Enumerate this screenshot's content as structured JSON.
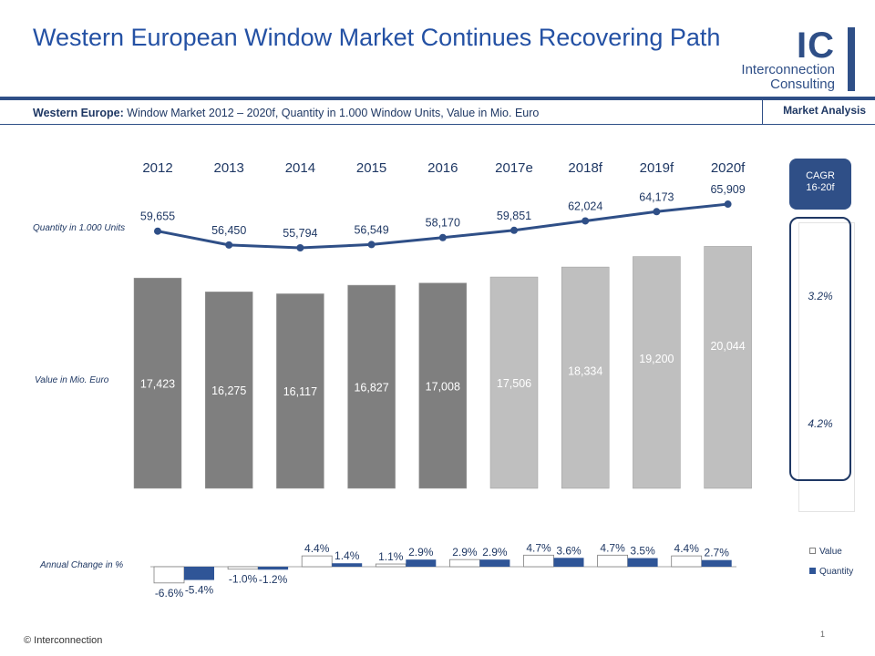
{
  "header": {
    "title": "Western European Window Market Continues Recovering Path",
    "subtitle_bold": "Western Europe:",
    "subtitle_rest": " Window Market 2012 – 2020f, Quantity in 1.000 Window Units, Value in Mio. Euro",
    "section_tag": "Market Analysis"
  },
  "logo": {
    "mark": "IC",
    "line1": "Interconnection",
    "line2": "Consulting"
  },
  "labels": {
    "quantity": "Quantity in 1.000  Units",
    "value": "Value in Mio. Euro",
    "annual_change": "Annual Change  in %"
  },
  "cagr": {
    "header": "CAGR\n16-20f",
    "quantity": "3.2%",
    "value": "4.2%"
  },
  "legend": {
    "value": "Value",
    "quantity": "Quantity"
  },
  "footer": {
    "copyright": "© Interconnection",
    "page": "1"
  },
  "colors": {
    "accent": "#2f4f87",
    "bar_actual": "#7f7f7f",
    "bar_forecast": "#bfbfbf",
    "line": "#2f4f87",
    "change_quantity": "#2f5597"
  },
  "chart_data": [
    {
      "type": "line",
      "name": "quantity",
      "x": [
        "2012",
        "2013",
        "2014",
        "2015",
        "2016",
        "2017e",
        "2018f",
        "2019f",
        "2020f"
      ],
      "values": [
        59655,
        56450,
        55794,
        56549,
        58170,
        59851,
        62024,
        64173,
        65909
      ],
      "value_labels": [
        "59,655",
        "56,450",
        "55,794",
        "56,549",
        "58,170",
        "59,851",
        "62,024",
        "64,173",
        "65,909"
      ],
      "ylabel": "Quantity in 1.000  Units"
    },
    {
      "type": "bar",
      "name": "value",
      "categories": [
        "2012",
        "2013",
        "2014",
        "2015",
        "2016",
        "2017e",
        "2018f",
        "2019f",
        "2020f"
      ],
      "values": [
        17423,
        16275,
        16117,
        16827,
        17008,
        17506,
        18334,
        19200,
        20044
      ],
      "value_labels": [
        "17,423",
        "16,275",
        "16,117",
        "16,827",
        "17,008",
        "17,506",
        "18,334",
        "19,200",
        "20,044"
      ],
      "forecast_from_index": 5,
      "ylabel": "Value in Mio. Euro"
    },
    {
      "type": "bar",
      "name": "annual_change",
      "ylabel": "Annual Change  in %",
      "series": [
        {
          "name": "Value",
          "values": [
            -6.6,
            -1.0,
            4.4,
            1.1,
            2.9,
            4.7,
            4.7,
            4.4
          ],
          "labels": [
            "-6.6%",
            "-1.0%",
            "4.4%",
            "1.1%",
            "2.9%",
            "4.7%",
            "4.7%",
            "4.4%"
          ]
        },
        {
          "name": "Quantity",
          "values": [
            -5.4,
            -1.2,
            1.4,
            2.9,
            2.9,
            3.6,
            3.5,
            2.7
          ],
          "labels": [
            "-5.4%",
            "-1.2%",
            "1.4%",
            "2.9%",
            "2.9%",
            "3.6%",
            "3.5%",
            "2.7%"
          ]
        }
      ],
      "legend_position": "right"
    }
  ]
}
